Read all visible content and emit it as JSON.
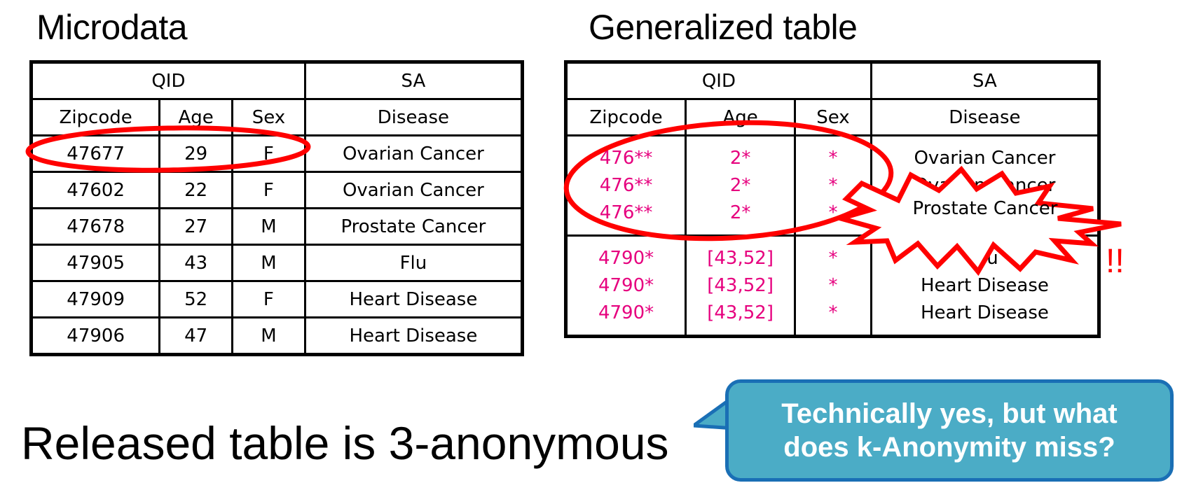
{
  "titles": {
    "left": "Microdata",
    "right": "Generalized table"
  },
  "microdata": {
    "group_headers": {
      "qid": "QID",
      "sa": "SA"
    },
    "columns": [
      "Zipcode",
      "Age",
      "Sex",
      "Disease"
    ],
    "rows": [
      [
        "47677",
        "29",
        "F",
        "Ovarian Cancer"
      ],
      [
        "47602",
        "22",
        "F",
        "Ovarian Cancer"
      ],
      [
        "47678",
        "27",
        "M",
        "Prostate Cancer"
      ],
      [
        "47905",
        "43",
        "M",
        "Flu"
      ],
      [
        "47909",
        "52",
        "F",
        "Heart Disease"
      ],
      [
        "47906",
        "47",
        "M",
        "Heart Disease"
      ]
    ]
  },
  "generalized": {
    "group_headers": {
      "qid": "QID",
      "sa": "SA"
    },
    "columns": [
      "Zipcode",
      "Age",
      "Sex",
      "Disease"
    ],
    "groups": [
      {
        "zipcode": [
          "476**",
          "476**",
          "476**"
        ],
        "age": [
          "2*",
          "2*",
          "2*"
        ],
        "sex": [
          "*",
          "*",
          "*"
        ],
        "disease": [
          "Ovarian Cancer",
          "Ovarian Cancer",
          "Prostate Cancer"
        ]
      },
      {
        "zipcode": [
          "4790*",
          "4790*",
          "4790*"
        ],
        "age": [
          "[43,52]",
          "[43,52]",
          "[43,52]"
        ],
        "sex": [
          "*",
          "*",
          "*"
        ],
        "disease": [
          "Flu",
          "Heart Disease",
          "Heart Disease"
        ]
      }
    ]
  },
  "annotation": {
    "exclaim": "!!"
  },
  "bottom_text": "Released table is 3-anonymous",
  "callout": {
    "line1": "Technically yes, but what",
    "line2": "does k-Anonymity miss?"
  },
  "colors": {
    "generalized_text": "#e6007e",
    "circle": "#ff0000",
    "callout_fill": "#4bacc6",
    "callout_border": "#1a6fb5"
  }
}
